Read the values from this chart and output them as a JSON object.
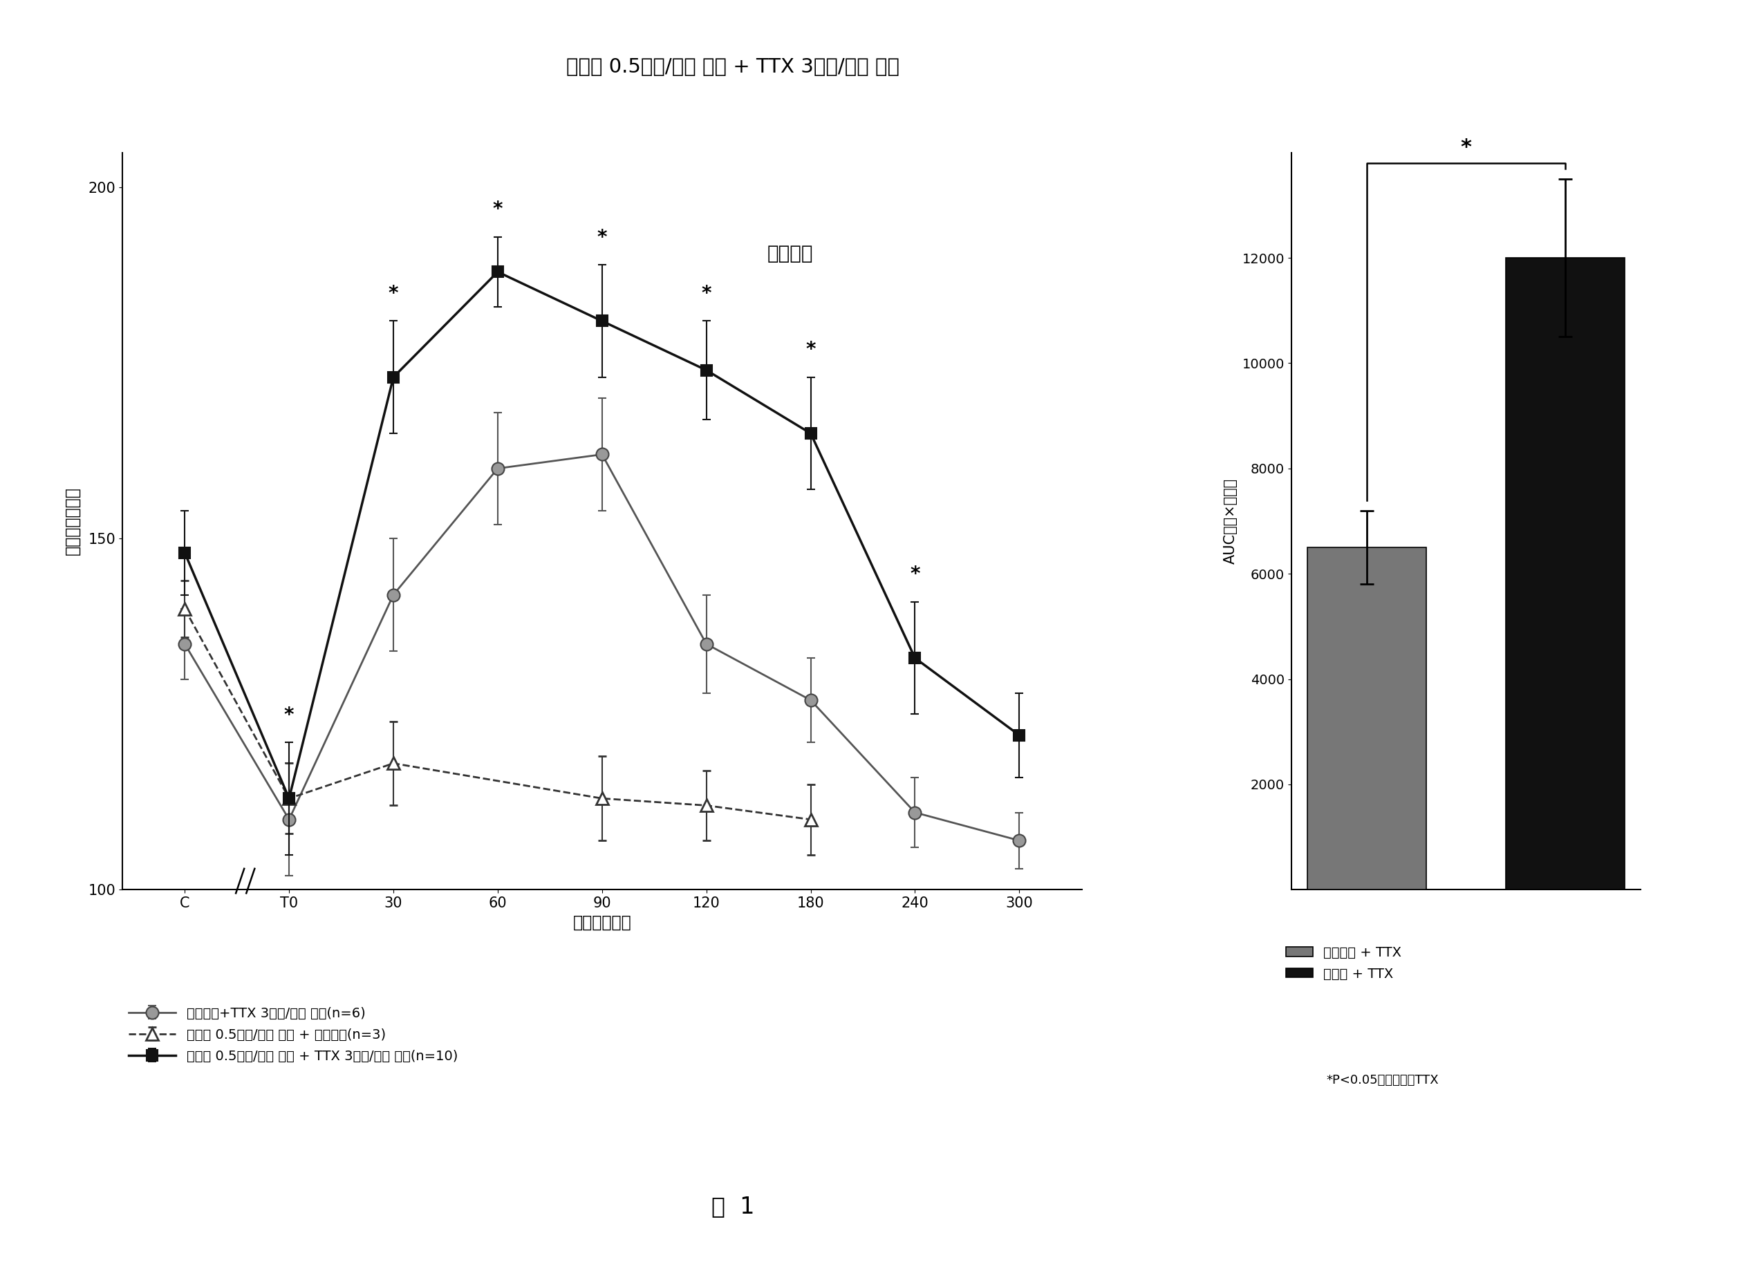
{
  "title": "纳洛酮 0.5毫克/千克 皮下 + TTX 3微克/千克 皮下",
  "fig1_label": "图  1",
  "subplot_label": "缩足试验",
  "xlabel": "时间（分钟）",
  "ylabel": "压力阈值（克）",
  "auc_ylabel": "AUC（克×分钟）",
  "x_labels": [
    "C",
    "T0",
    "30",
    "60",
    "90",
    "120",
    "180",
    "240",
    "300"
  ],
  "x_positions": [
    0,
    1,
    2,
    3,
    4,
    5,
    6,
    7,
    8
  ],
  "ylim": [
    100,
    205
  ],
  "yticks": [
    100,
    150,
    200
  ],
  "line1_label": "生理盐水+TTX 3微克/千克 皮下(n=6)",
  "line1_y": [
    135,
    110,
    142,
    160,
    162,
    135,
    127,
    111,
    107
  ],
  "line1_err": [
    5,
    8,
    8,
    8,
    8,
    7,
    6,
    5,
    4
  ],
  "line2_label": "纳洛酮 0.5毫克/千克 皮下 + 生理盐水(n=3)",
  "line2_x": [
    0,
    1,
    2,
    4,
    5,
    6
  ],
  "line2_y": [
    140,
    113,
    118,
    113,
    112,
    110
  ],
  "line2_err": [
    4,
    5,
    6,
    6,
    5,
    5
  ],
  "line3_label": "纳洛酮 0.5毫克/千克 皮下 + TTX 3微克/千克 皮下(n=10)",
  "line3_y": [
    148,
    113,
    173,
    188,
    181,
    174,
    165,
    133,
    122
  ],
  "line3_err": [
    6,
    8,
    8,
    5,
    8,
    7,
    8,
    8,
    6
  ],
  "star_indices_line3": [
    2,
    3,
    4,
    5,
    6,
    7
  ],
  "star_index_line1_t0": 1,
  "bar1_value": 6500,
  "bar1_err": 700,
  "bar2_value": 12000,
  "bar2_err": 1500,
  "bar1_label": "生理盐水 + TTX",
  "bar2_label": "纳洛酮 + TTX",
  "auc_ylim": [
    0,
    14000
  ],
  "auc_yticks": [
    2000,
    4000,
    6000,
    8000,
    10000,
    12000
  ],
  "significance_note": "*P<0.05相对于单用TTX",
  "bg_color": "#ffffff"
}
